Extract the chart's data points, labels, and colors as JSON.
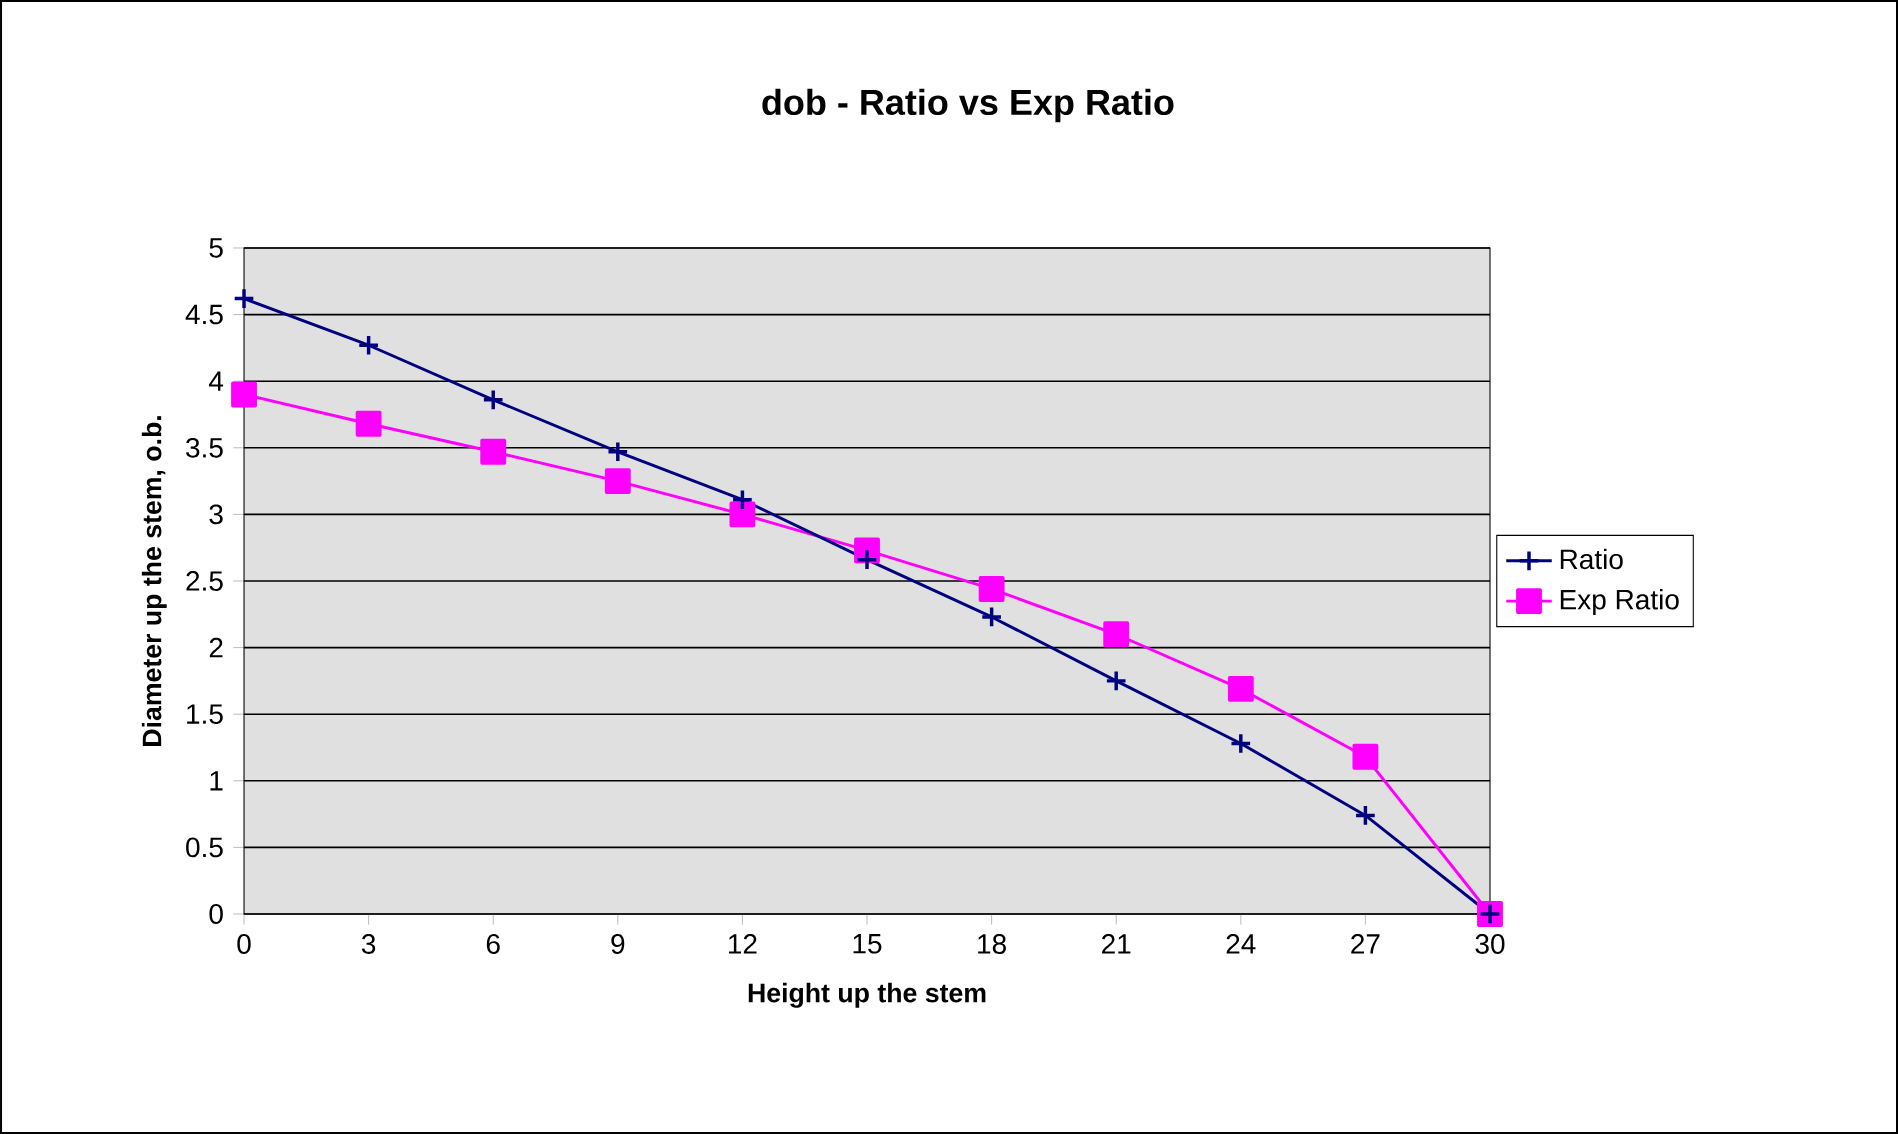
{
  "chart_data": {
    "type": "line",
    "title": "dob - Ratio vs Exp Ratio",
    "xlabel": "Height up the stem",
    "ylabel": "Diameter up the stem, o.b.",
    "x": [
      0,
      3,
      6,
      9,
      12,
      15,
      18,
      21,
      24,
      27,
      30
    ],
    "series": [
      {
        "name": "Ratio",
        "color": "#000080",
        "marker": "cross",
        "values": [
          4.62,
          4.27,
          3.86,
          3.47,
          3.11,
          2.66,
          2.23,
          1.75,
          1.28,
          0.74,
          0
        ]
      },
      {
        "name": "Exp Ratio",
        "color": "#ff00ff",
        "marker": "square",
        "values": [
          3.9,
          3.68,
          3.47,
          3.25,
          3.0,
          2.73,
          2.44,
          2.1,
          1.69,
          1.18,
          0
        ]
      }
    ],
    "xlim": [
      0,
      30
    ],
    "xticks": [
      0,
      3,
      6,
      9,
      12,
      15,
      18,
      21,
      24,
      27,
      30
    ],
    "ylim": [
      0,
      5
    ],
    "yticks": [
      0,
      0.5,
      1,
      1.5,
      2,
      2.5,
      3,
      3.5,
      4,
      4.5,
      5
    ],
    "grid": "y",
    "legend": "right",
    "line_style": "solid"
  }
}
